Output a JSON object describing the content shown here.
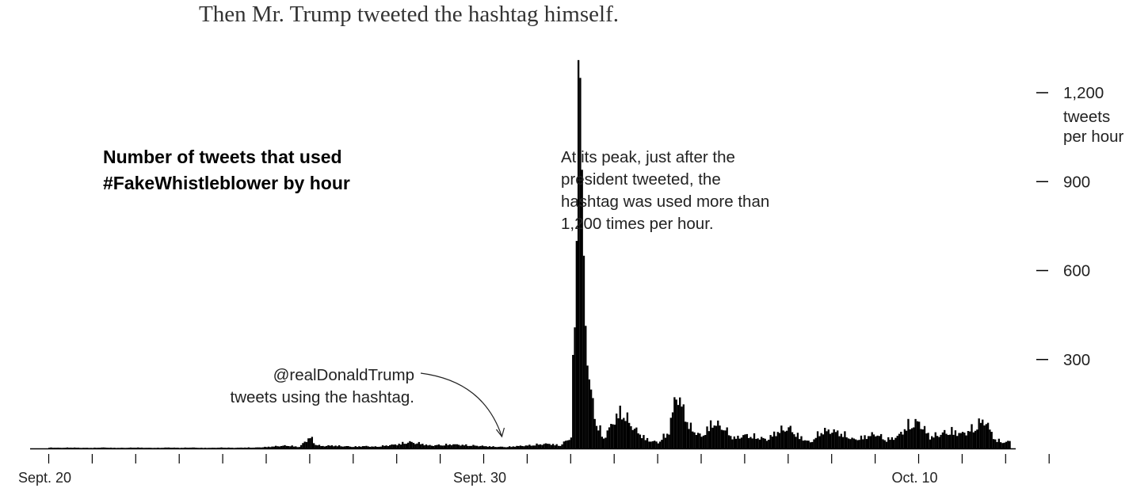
{
  "headline": "Then Mr. Trump tweeted the hashtag himself.",
  "chart_data": {
    "type": "bar",
    "title_lines": [
      "Number of tweets that used",
      "#FakeWhistleblower by hour"
    ],
    "x_unit": "hour",
    "x_start": "2019-09-20",
    "x_ticks": [
      {
        "date": "2019-09-20",
        "label": "Sept. 20"
      },
      {
        "date": "2019-09-21",
        "label": ""
      },
      {
        "date": "2019-09-22",
        "label": ""
      },
      {
        "date": "2019-09-23",
        "label": ""
      },
      {
        "date": "2019-09-24",
        "label": ""
      },
      {
        "date": "2019-09-25",
        "label": ""
      },
      {
        "date": "2019-09-26",
        "label": ""
      },
      {
        "date": "2019-09-27",
        "label": ""
      },
      {
        "date": "2019-09-28",
        "label": ""
      },
      {
        "date": "2019-09-29",
        "label": ""
      },
      {
        "date": "2019-09-30",
        "label": "Sept. 30"
      },
      {
        "date": "2019-10-01",
        "label": ""
      },
      {
        "date": "2019-10-02",
        "label": ""
      },
      {
        "date": "2019-10-03",
        "label": ""
      },
      {
        "date": "2019-10-04",
        "label": ""
      },
      {
        "date": "2019-10-05",
        "label": ""
      },
      {
        "date": "2019-10-06",
        "label": ""
      },
      {
        "date": "2019-10-07",
        "label": ""
      },
      {
        "date": "2019-10-08",
        "label": ""
      },
      {
        "date": "2019-10-09",
        "label": ""
      },
      {
        "date": "2019-10-10",
        "label": "Oct. 10"
      },
      {
        "date": "2019-10-11",
        "label": ""
      },
      {
        "date": "2019-10-12",
        "label": ""
      },
      {
        "date": "2019-10-13",
        "label": ""
      }
    ],
    "y_ticks": [
      {
        "value": 300,
        "label": "300"
      },
      {
        "value": 600,
        "label": "600"
      },
      {
        "value": 900,
        "label": "900"
      },
      {
        "value": 1200,
        "label": "1,200"
      }
    ],
    "y_unit_lines": [
      "tweets",
      "per hour"
    ],
    "ylim": [
      0,
      1350
    ],
    "grid": false,
    "annotations": [
      {
        "id": "trump",
        "lines": [
          "@realDonaldTrump",
          "tweets using the hashtag."
        ],
        "date": "2019-09-30T12:00"
      },
      {
        "id": "peak",
        "lines": [
          "At its peak, just after the",
          "president tweeted, the",
          "hashtag was used more than",
          "1,200 times per hour."
        ]
      }
    ],
    "series": [
      {
        "points": [
          [
            "2019-09-20T00:00",
            3
          ],
          [
            "2019-09-20T06:00",
            2
          ],
          [
            "2019-09-20T12:00",
            3
          ],
          [
            "2019-09-20T18:00",
            2
          ],
          [
            "2019-09-21T00:00",
            2
          ],
          [
            "2019-09-21T06:00",
            3
          ],
          [
            "2019-09-21T12:00",
            2
          ],
          [
            "2019-09-21T18:00",
            2
          ],
          [
            "2019-09-22T00:00",
            3
          ],
          [
            "2019-09-22T06:00",
            2
          ],
          [
            "2019-09-22T12:00",
            2
          ],
          [
            "2019-09-22T18:00",
            3
          ],
          [
            "2019-09-23T00:00",
            2
          ],
          [
            "2019-09-23T06:00",
            3
          ],
          [
            "2019-09-23T12:00",
            2
          ],
          [
            "2019-09-23T18:00",
            2
          ],
          [
            "2019-09-24T00:00",
            3
          ],
          [
            "2019-09-24T06:00",
            2
          ],
          [
            "2019-09-24T12:00",
            3
          ],
          [
            "2019-09-24T18:00",
            3
          ],
          [
            "2019-09-25T00:00",
            5
          ],
          [
            "2019-09-25T06:00",
            8
          ],
          [
            "2019-09-25T12:00",
            10
          ],
          [
            "2019-09-25T18:00",
            5
          ],
          [
            "2019-09-26T00:00",
            40
          ],
          [
            "2019-09-26T03:00",
            15
          ],
          [
            "2019-09-26T06:00",
            8
          ],
          [
            "2019-09-26T12:00",
            10
          ],
          [
            "2019-09-26T18:00",
            8
          ],
          [
            "2019-09-27T00:00",
            6
          ],
          [
            "2019-09-27T06:00",
            8
          ],
          [
            "2019-09-27T12:00",
            6
          ],
          [
            "2019-09-27T18:00",
            10
          ],
          [
            "2019-09-28T00:00",
            14
          ],
          [
            "2019-09-28T06:00",
            22
          ],
          [
            "2019-09-28T12:00",
            18
          ],
          [
            "2019-09-28T18:00",
            10
          ],
          [
            "2019-09-29T00:00",
            12
          ],
          [
            "2019-09-29T06:00",
            14
          ],
          [
            "2019-09-29T12:00",
            12
          ],
          [
            "2019-09-29T18:00",
            10
          ],
          [
            "2019-09-30T00:00",
            8
          ],
          [
            "2019-09-30T06:00",
            6
          ],
          [
            "2019-09-30T12:00",
            5
          ],
          [
            "2019-09-30T18:00",
            8
          ],
          [
            "2019-10-01T00:00",
            10
          ],
          [
            "2019-10-01T06:00",
            14
          ],
          [
            "2019-10-01T12:00",
            16
          ],
          [
            "2019-10-01T18:00",
            10
          ],
          [
            "2019-10-02T00:00",
            40
          ],
          [
            "2019-10-02T03:00",
            700
          ],
          [
            "2019-10-02T04:00",
            1310
          ],
          [
            "2019-10-02T05:00",
            1250
          ],
          [
            "2019-10-02T06:00",
            940
          ],
          [
            "2019-10-02T07:00",
            650
          ],
          [
            "2019-10-02T08:00",
            480
          ],
          [
            "2019-10-02T09:00",
            340
          ],
          [
            "2019-10-02T10:00",
            230
          ],
          [
            "2019-10-02T12:00",
            150
          ],
          [
            "2019-10-02T14:00",
            90
          ],
          [
            "2019-10-02T18:00",
            35
          ],
          [
            "2019-10-03T00:00",
            100
          ],
          [
            "2019-10-03T04:00",
            130
          ],
          [
            "2019-10-03T08:00",
            90
          ],
          [
            "2019-10-03T12:00",
            60
          ],
          [
            "2019-10-03T18:00",
            30
          ],
          [
            "2019-10-04T00:00",
            20
          ],
          [
            "2019-10-04T06:00",
            60
          ],
          [
            "2019-10-04T10:00",
            190
          ],
          [
            "2019-10-04T14:00",
            130
          ],
          [
            "2019-10-04T18:00",
            70
          ],
          [
            "2019-10-05T00:00",
            40
          ],
          [
            "2019-10-05T06:00",
            90
          ],
          [
            "2019-10-05T12:00",
            70
          ],
          [
            "2019-10-05T18:00",
            35
          ],
          [
            "2019-10-06T00:00",
            45
          ],
          [
            "2019-10-06T06:00",
            40
          ],
          [
            "2019-10-06T12:00",
            30
          ],
          [
            "2019-10-06T18:00",
            60
          ],
          [
            "2019-10-07T00:00",
            70
          ],
          [
            "2019-10-07T06:00",
            40
          ],
          [
            "2019-10-07T12:00",
            20
          ],
          [
            "2019-10-07T18:00",
            60
          ],
          [
            "2019-10-08T00:00",
            60
          ],
          [
            "2019-10-08T06:00",
            50
          ],
          [
            "2019-10-08T12:00",
            30
          ],
          [
            "2019-10-08T18:00",
            40
          ],
          [
            "2019-10-09T00:00",
            50
          ],
          [
            "2019-10-09T06:00",
            30
          ],
          [
            "2019-10-09T12:00",
            40
          ],
          [
            "2019-10-09T18:00",
            80
          ],
          [
            "2019-10-10T00:00",
            90
          ],
          [
            "2019-10-10T06:00",
            40
          ],
          [
            "2019-10-10T12:00",
            50
          ],
          [
            "2019-10-10T18:00",
            60
          ],
          [
            "2019-10-11T00:00",
            50
          ],
          [
            "2019-10-11T06:00",
            70
          ],
          [
            "2019-10-11T12:00",
            100
          ],
          [
            "2019-10-11T18:00",
            30
          ],
          [
            "2019-10-12T00:00",
            20
          ],
          [
            "2019-10-12T06:00",
            40
          ],
          [
            "2019-10-12T12:00",
            50
          ],
          [
            "2019-10-12T18:00",
            40
          ],
          [
            "2019-10-13T00:00",
            50
          ],
          [
            "2019-10-13T06:00",
            40
          ]
        ]
      }
    ]
  }
}
